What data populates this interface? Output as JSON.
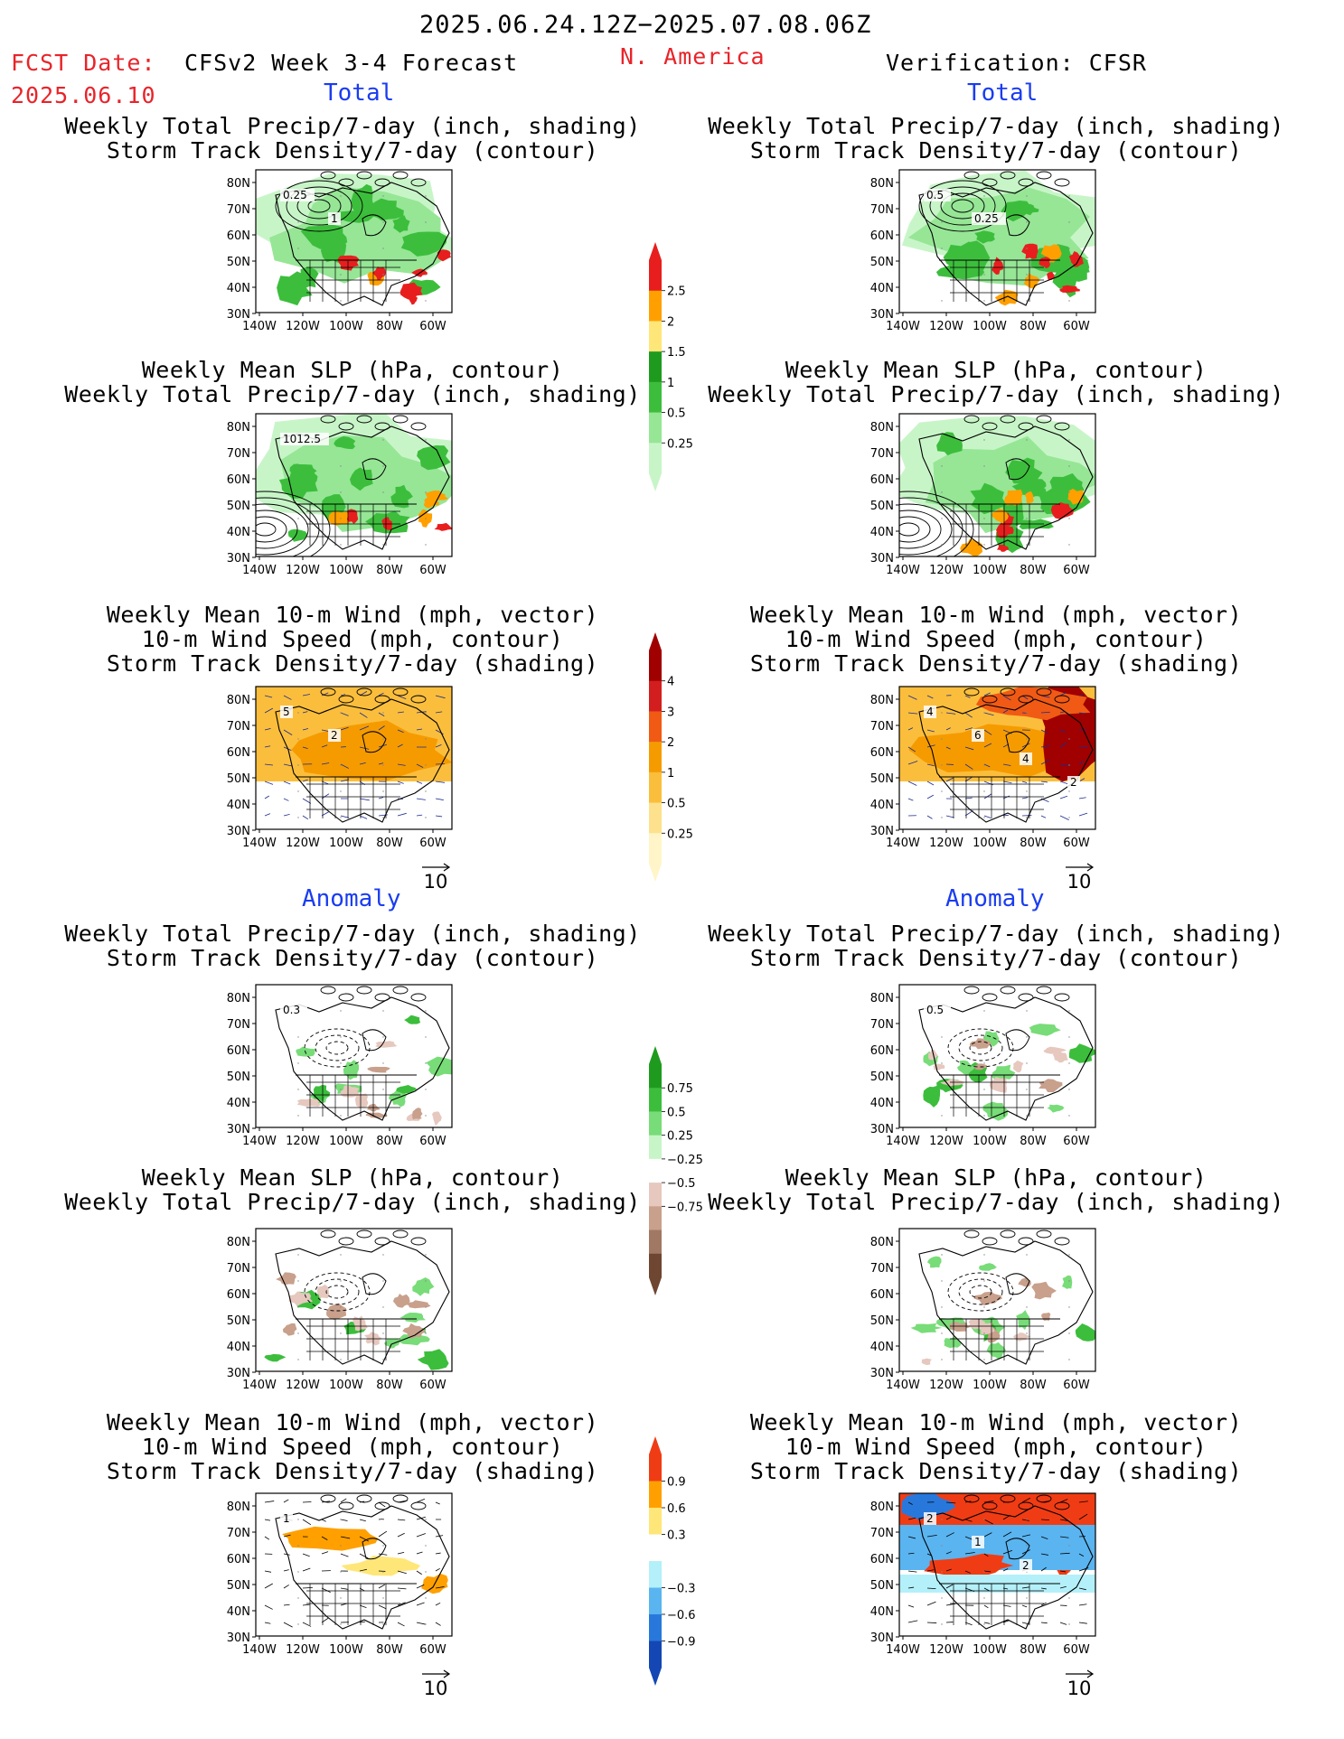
{
  "header": {
    "valid_period": "2025.06.24.12Z−2025.07.08.06Z",
    "fcst_date_label": "FCST Date:",
    "fcst_date": "2025.06.10",
    "model": "CFSv2 Week 3-4 Forecast",
    "region": "N. America",
    "verification": "Verification: CFSR"
  },
  "sections": {
    "total": "Total",
    "anomaly": "Anomaly"
  },
  "panel_titles": {
    "precip_track": [
      "Weekly Total Precip/7-day (inch, shading)",
      "Storm Track Density/7-day (contour)"
    ],
    "slp_precip": [
      "Weekly Mean SLP (hPa, contour)",
      "Weekly Total Precip/7-day (inch, shading)"
    ],
    "wind_track": [
      "Weekly Mean 10-m Wind (mph, vector)",
      "10-m Wind Speed (mph, contour)",
      "Storm Track Density/7-day (shading)"
    ]
  },
  "map_axes": {
    "lat_labels": [
      "80N",
      "70N",
      "60N",
      "50N",
      "40N",
      "30N"
    ],
    "lon_labels": [
      "140W",
      "120W",
      "100W",
      "80W",
      "60W"
    ]
  },
  "vector_reference": "10",
  "colorbars": {
    "precip_total": {
      "labels": [
        "2.5",
        "2",
        "1.5",
        "1",
        "0.5",
        "0.25"
      ],
      "colors": [
        "#e81e1e",
        "#ffa000",
        "#ffe678",
        "#1e9b1e",
        "#3cbe3c",
        "#96e696",
        "#c8f5c8"
      ]
    },
    "track_total": {
      "labels": [
        "4",
        "3",
        "2",
        "1",
        "0.5",
        "0.25"
      ],
      "colors": [
        "#a00000",
        "#d21e1e",
        "#f05a14",
        "#f59b00",
        "#fbbe3c",
        "#fde18c",
        "#fff5c8"
      ]
    },
    "precip_anom": {
      "labels": [
        "0.75",
        "0.5",
        "0.25",
        "−0.25",
        "−0.5",
        "−0.75"
      ],
      "colors": [
        "#1e9b1e",
        "#3cbe3c",
        "#78dc78",
        "#c8f5c8",
        "#ffffff",
        "#e6c8be",
        "#c8a08c",
        "#a07864",
        "#6e4632"
      ]
    },
    "track_anom": {
      "labels": [
        "0.9",
        "0.6",
        "0.3",
        "−0.3",
        "−0.6",
        "−0.9"
      ],
      "colors": [
        "#f03c14",
        "#ffa000",
        "#ffe678",
        "#ffffff",
        "#b4f0fa",
        "#5ab4f0",
        "#2878dc",
        "#1446b4"
      ]
    }
  },
  "contour_labels": {
    "L1": [
      "0.25",
      "1"
    ],
    "R1": [
      "0.5",
      "0.25"
    ],
    "L2": [
      "1012.5"
    ],
    "L3": [
      "5",
      "2"
    ],
    "R3": [
      "4",
      "6",
      "4",
      "2"
    ],
    "L4": [
      "0.3"
    ],
    "R4": [
      "0.5"
    ],
    "L6": [
      "1"
    ],
    "R6": [
      "2",
      "1",
      "2"
    ]
  },
  "colors": {
    "header_red": "#e8242a",
    "header_blue": "#1a3cf0",
    "vector_blue": "#1a2a90"
  }
}
